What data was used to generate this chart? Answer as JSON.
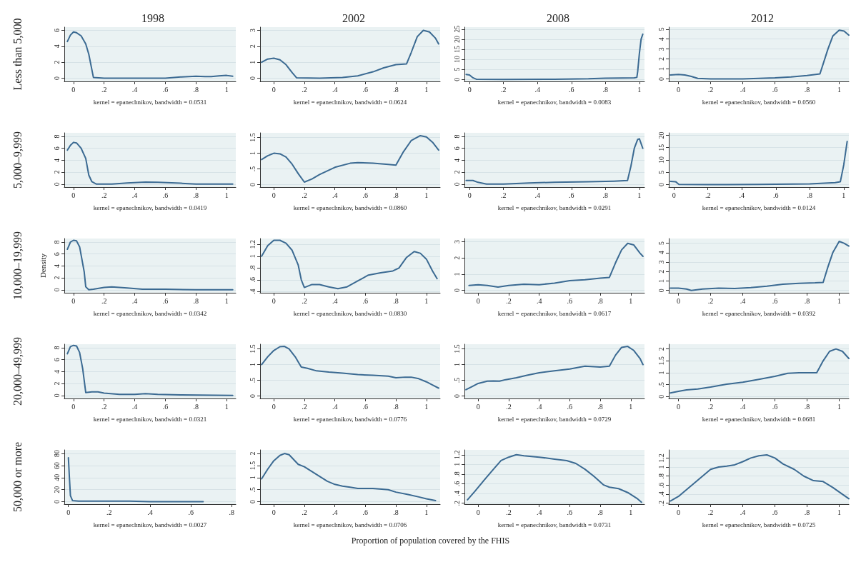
{
  "chart_data": [
    {
      "type": "line",
      "title": "1998",
      "ylabel": "Less than 5,000",
      "xlabel": "kernel = epanechnikov, bandwidth = 0.0531",
      "color": "#3b6a92",
      "marker": "none",
      "grid": "y",
      "xlim": [
        -0.06,
        1.06
      ],
      "ylim": [
        -0.4,
        6.4
      ],
      "xticks": [
        {
          "value": 0,
          "label": "0"
        },
        {
          "value": 0.2,
          "label": ".2"
        },
        {
          "value": 0.4,
          "label": ".4"
        },
        {
          "value": 0.6,
          "label": ".6"
        },
        {
          "value": 0.8,
          "label": ".8"
        },
        {
          "value": 1,
          "label": "1"
        }
      ],
      "yticks": [
        0,
        2,
        4,
        6
      ],
      "x": [
        -0.04,
        -0.02,
        0,
        0.02,
        0.05,
        0.08,
        0.1,
        0.13,
        0.2,
        0.4,
        0.6,
        0.7,
        0.8,
        0.86,
        0.9,
        0.95,
        1.0,
        1.04
      ],
      "values": [
        4.6,
        5.4,
        5.8,
        5.7,
        5.3,
        4.3,
        3,
        0.1,
        0,
        0,
        0,
        0.15,
        0.25,
        0.2,
        0.2,
        0.3,
        0.35,
        0.25
      ]
    },
    {
      "type": "line",
      "title": "2002",
      "xlabel": "kernel = epanechnikov, bandwidth = 0.0624",
      "color": "#3b6a92",
      "marker": "none",
      "grid": "y",
      "xlim": [
        -0.09,
        1.09
      ],
      "ylim": [
        -0.2,
        3.2
      ],
      "xticks": [
        {
          "value": 0,
          "label": "0"
        },
        {
          "value": 0.2,
          "label": ".2"
        },
        {
          "value": 0.4,
          "label": ".4"
        },
        {
          "value": 0.6,
          "label": ".6"
        },
        {
          "value": 0.8,
          "label": ".8"
        },
        {
          "value": 1,
          "label": "1"
        }
      ],
      "yticks": [
        0,
        1,
        2,
        3
      ],
      "x": [
        -0.08,
        -0.04,
        0,
        0.04,
        0.08,
        0.12,
        0.15,
        0.3,
        0.45,
        0.55,
        0.65,
        0.72,
        0.8,
        0.87,
        0.9,
        0.94,
        0.98,
        1.02,
        1.06,
        1.08
      ],
      "values": [
        1.0,
        1.2,
        1.25,
        1.15,
        0.85,
        0.35,
        0.02,
        0,
        0.05,
        0.15,
        0.4,
        0.65,
        0.85,
        0.9,
        1.6,
        2.6,
        3.0,
        2.9,
        2.5,
        2.15
      ]
    },
    {
      "type": "line",
      "title": "2008",
      "xlabel": "kernel = epanechnikov, bandwidth = 0.0083",
      "color": "#3b6a92",
      "marker": "none",
      "grid": "y",
      "xlim": [
        -0.03,
        1.03
      ],
      "ylim": [
        -1,
        26
      ],
      "xticks": [
        {
          "value": 0,
          "label": "0"
        },
        {
          "value": 0.2,
          "label": ".2"
        },
        {
          "value": 0.4,
          "label": ".4"
        },
        {
          "value": 0.6,
          "label": ".6"
        },
        {
          "value": 0.8,
          "label": ".8"
        },
        {
          "value": 1,
          "label": "1"
        }
      ],
      "yticks": [
        0,
        5,
        10,
        15,
        20,
        25
      ],
      "x": [
        -0.02,
        0,
        0.02,
        0.04,
        0.2,
        0.5,
        0.7,
        0.8,
        0.9,
        0.97,
        0.985,
        0.99,
        1.0,
        1.01,
        1.02
      ],
      "values": [
        2.5,
        2.2,
        0.8,
        0.1,
        0,
        0.1,
        0.3,
        0.6,
        0.7,
        0.8,
        1,
        4,
        13,
        20,
        22.5
      ]
    },
    {
      "type": "line",
      "title": "2012",
      "xlabel": "kernel = epanechnikov, bandwidth = 0.0560",
      "color": "#3b6a92",
      "marker": "none",
      "grid": "y",
      "xlim": [
        -0.06,
        1.06
      ],
      "ylim": [
        -0.25,
        5.2
      ],
      "xticks": [
        {
          "value": 0,
          "label": "0"
        },
        {
          "value": 0.2,
          "label": ".2"
        },
        {
          "value": 0.4,
          "label": ".4"
        },
        {
          "value": 0.6,
          "label": ".6"
        },
        {
          "value": 0.8,
          "label": ".8"
        },
        {
          "value": 1,
          "label": "1"
        }
      ],
      "yticks": [
        0,
        1,
        2,
        3,
        4,
        5
      ],
      "x": [
        -0.05,
        0,
        0.04,
        0.08,
        0.12,
        0.2,
        0.4,
        0.6,
        0.7,
        0.8,
        0.88,
        0.9,
        0.93,
        0.96,
        1.0,
        1.03,
        1.06
      ],
      "values": [
        0.4,
        0.45,
        0.4,
        0.25,
        0.05,
        0,
        0,
        0.1,
        0.2,
        0.35,
        0.5,
        1.5,
        3,
        4.3,
        4.9,
        4.8,
        4.4
      ]
    },
    {
      "type": "line",
      "ylabel": "5,000–9,999",
      "xlabel": "kernel = epanechnikov, bandwidth = 0.0419",
      "color": "#3b6a92",
      "marker": "none",
      "grid": "y",
      "xlim": [
        -0.06,
        1.06
      ],
      "ylim": [
        -0.5,
        8.6
      ],
      "xticks": [
        {
          "value": 0,
          "label": "0"
        },
        {
          "value": 0.2,
          "label": ".2"
        },
        {
          "value": 0.4,
          "label": ".4"
        },
        {
          "value": 0.6,
          "label": ".6"
        },
        {
          "value": 0.8,
          "label": ".8"
        },
        {
          "value": 1,
          "label": "1"
        }
      ],
      "yticks": [
        0,
        2,
        4,
        6,
        8
      ],
      "x": [
        -0.04,
        -0.02,
        0,
        0.02,
        0.05,
        0.08,
        0.1,
        0.12,
        0.15,
        0.25,
        0.35,
        0.47,
        0.55,
        0.7,
        0.8,
        1.0,
        1.04
      ],
      "values": [
        5.7,
        6.5,
        7,
        6.9,
        6,
        4.3,
        1.5,
        0.4,
        0,
        0,
        0.2,
        0.35,
        0.3,
        0.15,
        0,
        0,
        0
      ]
    },
    {
      "type": "line",
      "xlabel": "kernel = epanechnikov, bandwidth = 0.0860",
      "color": "#3b6a92",
      "marker": "none",
      "grid": "y",
      "xlim": [
        -0.09,
        1.09
      ],
      "ylim": [
        -0.08,
        1.65
      ],
      "xticks": [
        {
          "value": 0,
          "label": "0"
        },
        {
          "value": 0.2,
          "label": ".2"
        },
        {
          "value": 0.4,
          "label": ".4"
        },
        {
          "value": 0.6,
          "label": ".6"
        },
        {
          "value": 0.8,
          "label": ".8"
        },
        {
          "value": 1,
          "label": "1"
        }
      ],
      "yticks": [
        0,
        {
          "value": 0.5,
          "label": ".5"
        },
        1,
        1.5
      ],
      "x": [
        -0.08,
        -0.04,
        0,
        0.04,
        0.08,
        0.12,
        0.16,
        0.2,
        0.25,
        0.3,
        0.4,
        0.5,
        0.55,
        0.65,
        0.75,
        0.8,
        0.85,
        0.9,
        0.96,
        1.0,
        1.04,
        1.08
      ],
      "values": [
        0.8,
        0.92,
        1.0,
        0.98,
        0.88,
        0.65,
        0.35,
        0.08,
        0.18,
        0.32,
        0.55,
        0.68,
        0.7,
        0.68,
        0.64,
        0.62,
        1.05,
        1.4,
        1.56,
        1.52,
        1.35,
        1.1
      ]
    },
    {
      "type": "line",
      "xlabel": "kernel = epanechnikov, bandwidth = 0.0291",
      "color": "#3b6a92",
      "marker": "none",
      "grid": "y",
      "xlim": [
        -0.03,
        1.03
      ],
      "ylim": [
        -0.5,
        8.6
      ],
      "xticks": [
        {
          "value": 0,
          "label": "0"
        },
        {
          "value": 0.2,
          "label": ".2"
        },
        {
          "value": 0.4,
          "label": ".4"
        },
        {
          "value": 0.6,
          "label": ".6"
        },
        {
          "value": 0.8,
          "label": ".8"
        },
        {
          "value": 1,
          "label": "1"
        }
      ],
      "yticks": [
        0,
        2,
        4,
        6,
        8
      ],
      "x": [
        -0.02,
        0.02,
        0.05,
        0.1,
        0.2,
        0.35,
        0.5,
        0.7,
        0.85,
        0.93,
        0.95,
        0.97,
        0.99,
        1.0,
        1.02
      ],
      "values": [
        0.6,
        0.6,
        0.3,
        0,
        0,
        0.2,
        0.3,
        0.4,
        0.5,
        0.6,
        3,
        6,
        7.5,
        7.6,
        6
      ]
    },
    {
      "type": "line",
      "xlabel": "kernel = epanechnikov, bandwidth = 0.0124",
      "color": "#3b6a92",
      "marker": "none",
      "grid": "y",
      "xlim": [
        -0.03,
        1.03
      ],
      "ylim": [
        -1,
        21
      ],
      "xticks": [
        {
          "value": 0,
          "label": "0"
        },
        {
          "value": 0.2,
          "label": ".2"
        },
        {
          "value": 0.4,
          "label": ".4"
        },
        {
          "value": 0.6,
          "label": ".6"
        },
        {
          "value": 0.8,
          "label": ".8"
        },
        {
          "value": 1,
          "label": "1"
        }
      ],
      "yticks": [
        0,
        5,
        10,
        15,
        20
      ],
      "x": [
        -0.02,
        0.01,
        0.03,
        0.2,
        0.5,
        0.8,
        0.95,
        0.98,
        1.0,
        1.02
      ],
      "values": [
        1.3,
        1.2,
        0.1,
        0,
        0.1,
        0.3,
        0.8,
        1.2,
        8,
        17.5
      ]
    },
    {
      "type": "line",
      "ylabel": "10,000–19,999",
      "annotations": [
        "Density"
      ],
      "xlabel": "kernel = epanechnikov, bandwidth = 0.0342",
      "color": "#3b6a92",
      "marker": "none",
      "grid": "y",
      "xlim": [
        -0.06,
        1.06
      ],
      "ylim": [
        -0.5,
        8.6
      ],
      "xticks": [
        {
          "value": 0,
          "label": "0"
        },
        {
          "value": 0.2,
          "label": ".2"
        },
        {
          "value": 0.4,
          "label": ".4"
        },
        {
          "value": 0.6,
          "label": ".6"
        },
        {
          "value": 0.8,
          "label": ".8"
        },
        {
          "value": 1,
          "label": "1"
        }
      ],
      "yticks": [
        0,
        2,
        4,
        6,
        8
      ],
      "x": [
        -0.04,
        -0.02,
        0,
        0.02,
        0.04,
        0.07,
        0.08,
        0.1,
        0.13,
        0.2,
        0.25,
        0.35,
        0.45,
        0.6,
        0.8,
        1.04
      ],
      "values": [
        6.8,
        8,
        8.3,
        8.2,
        7.2,
        3,
        0.5,
        0,
        0.1,
        0.4,
        0.5,
        0.3,
        0.1,
        0.1,
        0,
        0
      ]
    },
    {
      "type": "line",
      "xlabel": "kernel = epanechnikov, bandwidth = 0.0830",
      "color": "#3b6a92",
      "marker": "none",
      "grid": "y",
      "xlim": [
        -0.09,
        1.09
      ],
      "ylim": [
        0.38,
        1.3
      ],
      "xticks": [
        {
          "value": 0,
          "label": "0"
        },
        {
          "value": 0.2,
          "label": ".2"
        },
        {
          "value": 0.4,
          "label": ".4"
        },
        {
          "value": 0.6,
          "label": ".6"
        },
        {
          "value": 0.8,
          "label": ".8"
        },
        {
          "value": 1,
          "label": "1"
        }
      ],
      "yticks": [
        {
          "value": 0.4,
          "label": ".4"
        },
        {
          "value": 0.6,
          "label": ".6"
        },
        {
          "value": 0.8,
          "label": ".8"
        },
        1,
        1.2
      ],
      "x": [
        -0.08,
        -0.04,
        0,
        0.04,
        0.08,
        0.12,
        0.16,
        0.18,
        0.2,
        0.25,
        0.3,
        0.36,
        0.42,
        0.48,
        0.55,
        0.62,
        0.7,
        0.78,
        0.82,
        0.87,
        0.92,
        0.96,
        1.0,
        1.04,
        1.07
      ],
      "values": [
        1.0,
        1.18,
        1.27,
        1.27,
        1.22,
        1.1,
        0.85,
        0.6,
        0.47,
        0.52,
        0.52,
        0.48,
        0.45,
        0.48,
        0.58,
        0.68,
        0.72,
        0.75,
        0.8,
        0.98,
        1.08,
        1.05,
        0.95,
        0.75,
        0.62
      ]
    },
    {
      "type": "line",
      "xlabel": "kernel = epanechnikov, bandwidth = 0.0617",
      "color": "#3b6a92",
      "marker": "none",
      "grid": "y",
      "xlim": [
        -0.09,
        1.09
      ],
      "ylim": [
        -0.15,
        3.2
      ],
      "xticks": [
        {
          "value": 0,
          "label": "0"
        },
        {
          "value": 0.2,
          "label": ".2"
        },
        {
          "value": 0.4,
          "label": ".4"
        },
        {
          "value": 0.6,
          "label": ".6"
        },
        {
          "value": 0.8,
          "label": ".8"
        },
        {
          "value": 1,
          "label": "1"
        }
      ],
      "yticks": [
        0,
        1,
        2,
        3
      ],
      "x": [
        -0.06,
        0,
        0.06,
        0.13,
        0.2,
        0.3,
        0.4,
        0.5,
        0.6,
        0.7,
        0.8,
        0.86,
        0.9,
        0.94,
        0.98,
        1.02,
        1.06,
        1.08
      ],
      "values": [
        0.3,
        0.35,
        0.3,
        0.2,
        0.3,
        0.38,
        0.35,
        0.45,
        0.6,
        0.65,
        0.75,
        0.8,
        1.7,
        2.5,
        2.9,
        2.8,
        2.3,
        2.1
      ]
    },
    {
      "type": "line",
      "xlabel": "kernel = epanechnikov, bandwidth = 0.0392",
      "color": "#3b6a92",
      "marker": "none",
      "grid": "y",
      "xlim": [
        -0.06,
        1.06
      ],
      "ylim": [
        -0.25,
        5.5
      ],
      "xticks": [
        {
          "value": 0,
          "label": "0"
        },
        {
          "value": 0.2,
          "label": ".2"
        },
        {
          "value": 0.4,
          "label": ".4"
        },
        {
          "value": 0.6,
          "label": ".6"
        },
        {
          "value": 0.8,
          "label": ".8"
        },
        {
          "value": 1,
          "label": "1"
        }
      ],
      "yticks": [
        0,
        1,
        2,
        3,
        4,
        5
      ],
      "x": [
        -0.05,
        0,
        0.05,
        0.08,
        0.15,
        0.25,
        0.35,
        0.45,
        0.55,
        0.65,
        0.75,
        0.85,
        0.9,
        0.93,
        0.96,
        1.0,
        1.03,
        1.06
      ],
      "values": [
        0.25,
        0.25,
        0.15,
        0,
        0.15,
        0.25,
        0.2,
        0.3,
        0.45,
        0.65,
        0.75,
        0.8,
        0.85,
        2.5,
        4,
        5.2,
        5,
        4.7
      ]
    },
    {
      "type": "line",
      "ylabel": "20,000–49,999",
      "xlabel": "kernel = epanechnikov, bandwidth = 0.0321",
      "color": "#3b6a92",
      "marker": "none",
      "grid": "y",
      "xlim": [
        -0.06,
        1.06
      ],
      "ylim": [
        -0.5,
        8.6
      ],
      "xticks": [
        {
          "value": 0,
          "label": "0"
        },
        {
          "value": 0.2,
          "label": ".2"
        },
        {
          "value": 0.4,
          "label": ".4"
        },
        {
          "value": 0.6,
          "label": ".6"
        },
        {
          "value": 0.8,
          "label": ".8"
        },
        {
          "value": 1,
          "label": "1"
        }
      ],
      "yticks": [
        0,
        2,
        4,
        6,
        8
      ],
      "x": [
        -0.04,
        -0.02,
        0,
        0.02,
        0.04,
        0.06,
        0.08,
        0.12,
        0.16,
        0.2,
        0.3,
        0.4,
        0.47,
        0.55,
        0.7,
        1.04
      ],
      "values": [
        7,
        8.2,
        8.4,
        8.3,
        7.2,
        4.5,
        0.5,
        0.6,
        0.6,
        0.4,
        0.2,
        0.2,
        0.3,
        0.2,
        0.1,
        0
      ]
    },
    {
      "type": "line",
      "xlabel": "kernel = epanechnikov, bandwidth = 0.0776",
      "color": "#3b6a92",
      "marker": "none",
      "grid": "y",
      "xlim": [
        -0.09,
        1.09
      ],
      "ylim": [
        -0.08,
        1.65
      ],
      "xticks": [
        {
          "value": 0,
          "label": "0"
        },
        {
          "value": 0.2,
          "label": ".2"
        },
        {
          "value": 0.4,
          "label": ".4"
        },
        {
          "value": 0.6,
          "label": ".6"
        },
        {
          "value": 0.8,
          "label": ".8"
        },
        {
          "value": 1,
          "label": "1"
        }
      ],
      "yticks": [
        0,
        {
          "value": 0.5,
          "label": ".5"
        },
        1,
        1.5
      ],
      "x": [
        -0.08,
        -0.04,
        0,
        0.04,
        0.07,
        0.1,
        0.14,
        0.18,
        0.22,
        0.28,
        0.36,
        0.45,
        0.55,
        0.65,
        0.75,
        0.8,
        0.86,
        0.9,
        0.95,
        1.0,
        1.04,
        1.08
      ],
      "values": [
        1.0,
        1.25,
        1.45,
        1.57,
        1.58,
        1.5,
        1.25,
        0.92,
        0.88,
        0.8,
        0.76,
        0.73,
        0.68,
        0.66,
        0.63,
        0.58,
        0.6,
        0.6,
        0.55,
        0.45,
        0.35,
        0.25
      ]
    },
    {
      "type": "line",
      "xlabel": "kernel = epanechnikov, bandwidth = 0.0729",
      "color": "#3b6a92",
      "marker": "none",
      "grid": "y",
      "xlim": [
        -0.09,
        1.09
      ],
      "ylim": [
        -0.08,
        1.65
      ],
      "xticks": [
        {
          "value": 0,
          "label": "0"
        },
        {
          "value": 0.2,
          "label": ".2"
        },
        {
          "value": 0.4,
          "label": ".4"
        },
        {
          "value": 0.6,
          "label": ".6"
        },
        {
          "value": 0.8,
          "label": ".8"
        },
        {
          "value": 1,
          "label": "1"
        }
      ],
      "yticks": [
        0,
        {
          "value": 0.5,
          "label": ".5"
        },
        1,
        1.5
      ],
      "x": [
        -0.08,
        -0.04,
        0,
        0.06,
        0.1,
        0.14,
        0.18,
        0.25,
        0.32,
        0.4,
        0.5,
        0.6,
        0.7,
        0.8,
        0.86,
        0.9,
        0.94,
        0.98,
        1.02,
        1.06,
        1.08
      ],
      "values": [
        0.2,
        0.3,
        0.4,
        0.47,
        0.48,
        0.47,
        0.52,
        0.58,
        0.66,
        0.74,
        0.8,
        0.86,
        0.95,
        0.92,
        0.95,
        1.3,
        1.55,
        1.58,
        1.45,
        1.2,
        1.0
      ]
    },
    {
      "type": "line",
      "xlabel": "kernel = epanechnikov, bandwidth = 0.0681",
      "color": "#3b6a92",
      "marker": "none",
      "grid": "y",
      "xlim": [
        -0.06,
        1.06
      ],
      "ylim": [
        -0.08,
        2.2
      ],
      "xticks": [
        {
          "value": 0,
          "label": "0"
        },
        {
          "value": 0.2,
          "label": ".2"
        },
        {
          "value": 0.4,
          "label": ".4"
        },
        {
          "value": 0.6,
          "label": ".6"
        },
        {
          "value": 0.8,
          "label": ".8"
        },
        {
          "value": 1,
          "label": "1"
        }
      ],
      "yticks": [
        0,
        {
          "value": 0.5,
          "label": ".5"
        },
        1,
        1.5,
        2
      ],
      "x": [
        -0.05,
        0,
        0.05,
        0.12,
        0.2,
        0.3,
        0.4,
        0.5,
        0.6,
        0.68,
        0.75,
        0.86,
        0.9,
        0.94,
        0.98,
        1.02,
        1.06
      ],
      "values": [
        0.15,
        0.22,
        0.28,
        0.32,
        0.4,
        0.52,
        0.6,
        0.72,
        0.85,
        0.98,
        1.0,
        1.0,
        1.5,
        1.9,
        2.0,
        1.9,
        1.6
      ]
    },
    {
      "type": "line",
      "ylabel": "50,000 or more",
      "xlabel": "kernel = epanechnikov, bandwidth = 0.0027",
      "color": "#3b6a92",
      "marker": "none",
      "grid": "y",
      "xlim": [
        -0.02,
        0.82
      ],
      "ylim": [
        -4,
        86
      ],
      "xticks": [
        {
          "value": 0,
          "label": "0"
        },
        {
          "value": 0.2,
          "label": ".2"
        },
        {
          "value": 0.4,
          "label": ".4"
        },
        {
          "value": 0.6,
          "label": ".6"
        },
        {
          "value": 0.8,
          "label": ".8"
        }
      ],
      "yticks": [
        0,
        20,
        40,
        60,
        80
      ],
      "x": [
        0,
        0.005,
        0.01,
        0.02,
        0.05,
        0.1,
        0.2,
        0.3,
        0.4,
        0.5,
        0.66
      ],
      "values": [
        73,
        40,
        10,
        2,
        1,
        1,
        1,
        1,
        0,
        0,
        0
      ]
    },
    {
      "type": "line",
      "xlabel": "kernel = epanechnikov, bandwidth = 0.0706",
      "annotations": [
        "Proportion of population covered by the FHIS"
      ],
      "color": "#3b6a92",
      "marker": "none",
      "grid": "y",
      "xlim": [
        -0.09,
        1.09
      ],
      "ylim": [
        -0.1,
        2.15
      ],
      "xticks": [
        {
          "value": 0,
          "label": "0"
        },
        {
          "value": 0.2,
          "label": ".2"
        },
        {
          "value": 0.4,
          "label": ".4"
        },
        {
          "value": 0.6,
          "label": ".6"
        },
        {
          "value": 0.8,
          "label": ".8"
        },
        {
          "value": 1,
          "label": "1"
        }
      ],
      "yticks": [
        0,
        {
          "value": 0.5,
          "label": ".5"
        },
        1,
        1.5,
        2
      ],
      "x": [
        -0.08,
        -0.04,
        0,
        0.04,
        0.07,
        0.1,
        0.13,
        0.16,
        0.2,
        0.25,
        0.3,
        0.35,
        0.4,
        0.45,
        0.5,
        0.55,
        0.65,
        0.75,
        0.8,
        0.88,
        0.95,
        1.0,
        1.06
      ],
      "values": [
        0.95,
        1.35,
        1.7,
        1.92,
        2.0,
        1.95,
        1.75,
        1.55,
        1.45,
        1.25,
        1.05,
        0.85,
        0.72,
        0.65,
        0.6,
        0.55,
        0.55,
        0.5,
        0.4,
        0.3,
        0.2,
        0.12,
        0.05
      ]
    },
    {
      "type": "line",
      "xlabel": "kernel = epanechnikov, bandwidth = 0.0731",
      "color": "#3b6a92",
      "marker": "none",
      "grid": "y",
      "xlim": [
        -0.09,
        1.09
      ],
      "ylim": [
        0.18,
        1.3
      ],
      "xticks": [
        {
          "value": 0,
          "label": "0"
        },
        {
          "value": 0.2,
          "label": ".2"
        },
        {
          "value": 0.4,
          "label": ".4"
        },
        {
          "value": 0.6,
          "label": ".6"
        },
        {
          "value": 0.8,
          "label": ".8"
        },
        {
          "value": 1,
          "label": "1"
        }
      ],
      "yticks": [
        {
          "value": 0.2,
          "label": ".2"
        },
        {
          "value": 0.4,
          "label": ".4"
        },
        {
          "value": 0.6,
          "label": ".6"
        },
        {
          "value": 0.8,
          "label": ".8"
        },
        1,
        1.2
      ],
      "x": [
        -0.07,
        -0.02,
        0.04,
        0.1,
        0.15,
        0.2,
        0.25,
        0.3,
        0.4,
        0.5,
        0.58,
        0.64,
        0.7,
        0.76,
        0.82,
        0.86,
        0.92,
        0.98,
        1.04,
        1.07
      ],
      "values": [
        0.27,
        0.45,
        0.68,
        0.9,
        1.08,
        1.15,
        1.2,
        1.18,
        1.15,
        1.11,
        1.08,
        1.02,
        0.9,
        0.75,
        0.58,
        0.53,
        0.5,
        0.42,
        0.3,
        0.22
      ]
    },
    {
      "type": "line",
      "xlabel": "kernel = epanechnikov, bandwidth = 0.0725",
      "color": "#3b6a92",
      "marker": "none",
      "grid": "y",
      "xlim": [
        -0.06,
        1.06
      ],
      "ylim": [
        0.18,
        1.38
      ],
      "xticks": [
        {
          "value": 0,
          "label": "0"
        },
        {
          "value": 0.2,
          "label": ".2"
        },
        {
          "value": 0.4,
          "label": ".4"
        },
        {
          "value": 0.6,
          "label": ".6"
        },
        {
          "value": 0.8,
          "label": ".8"
        },
        {
          "value": 1,
          "label": "1"
        }
      ],
      "yticks": [
        {
          "value": 0.2,
          "label": ".2"
        },
        {
          "value": 0.4,
          "label": ".4"
        },
        {
          "value": 0.6,
          "label": ".6"
        },
        {
          "value": 0.8,
          "label": ".8"
        },
        1,
        1.2
      ],
      "x": [
        -0.05,
        0,
        0.05,
        0.1,
        0.15,
        0.2,
        0.25,
        0.3,
        0.35,
        0.4,
        0.45,
        0.5,
        0.55,
        0.6,
        0.65,
        0.72,
        0.78,
        0.84,
        0.9,
        0.96,
        1.02,
        1.06
      ],
      "values": [
        0.25,
        0.35,
        0.5,
        0.65,
        0.8,
        0.95,
        1.0,
        1.02,
        1.05,
        1.12,
        1.2,
        1.25,
        1.27,
        1.2,
        1.07,
        0.95,
        0.8,
        0.7,
        0.68,
        0.55,
        0.4,
        0.3
      ]
    }
  ]
}
